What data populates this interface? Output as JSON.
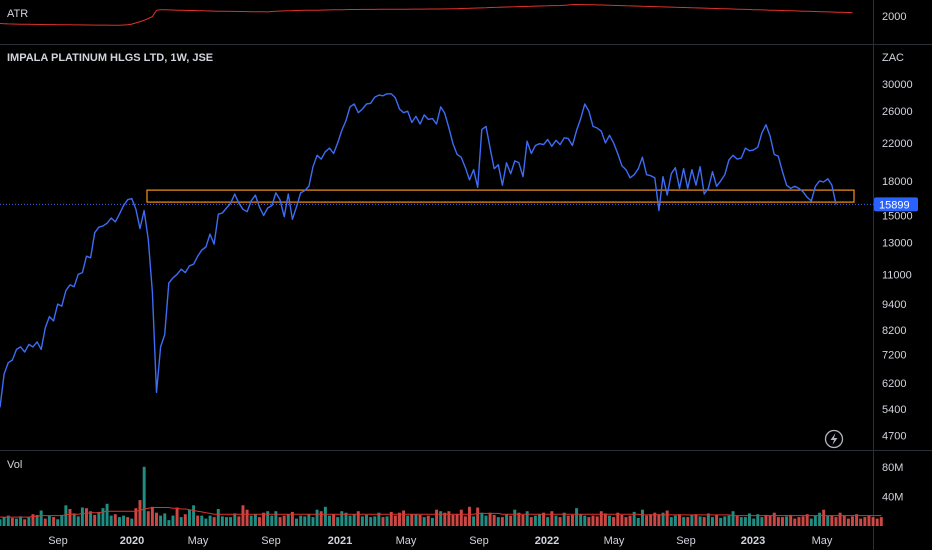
{
  "colors": {
    "background": "#000000",
    "price_line": "#3d6cf5",
    "atr_line": "#e0322b",
    "zone": "#f7931a",
    "vol_up": "#26a69a",
    "vol_down": "#ef5350",
    "vol_ma": "#e0322b",
    "pane_border": "#2a2e39"
  },
  "atr_pane": {
    "label": "ATR",
    "axis_label": "2000"
  },
  "price_pane": {
    "title": "IMPALA PLATINUM HLGS LTD, 1W, JSE",
    "currency": "ZAC",
    "last_price": "15899",
    "y_ticks": [
      "30000",
      "26000",
      "22000",
      "18000",
      "15000",
      "13000",
      "11000",
      "9400",
      "8200",
      "7200",
      "6200",
      "5400",
      "4700"
    ],
    "icon": "lightning-icon"
  },
  "volume_pane": {
    "label": "Vol",
    "y_ticks": [
      "80M",
      "40M"
    ]
  },
  "x_axis": {
    "labels": [
      "Sep",
      "2020",
      "May",
      "Sep",
      "2021",
      "May",
      "Sep",
      "2022",
      "May",
      "Sep",
      "2023",
      "May"
    ]
  },
  "chart_data": [
    {
      "type": "line",
      "title": "IMPALA PLATINUM HLGS LTD, 1W, JSE",
      "ylabel": "ZAC",
      "scale": "log",
      "ylim": [
        4400,
        33000
      ],
      "series": [
        {
          "name": "Close",
          "values": [
            5450,
            6500,
            6900,
            7000,
            7400,
            7500,
            7300,
            7600,
            7500,
            7700,
            7400,
            8300,
            8800,
            8600,
            9400,
            9300,
            10100,
            10400,
            10300,
            11000,
            11100,
            12100,
            12000,
            13700,
            14100,
            14200,
            14400,
            14800,
            14500,
            15100,
            15800,
            16300,
            16400,
            15500,
            14000,
            15400,
            13200,
            10000,
            5900,
            7500,
            8000,
            10500,
            10800,
            11000,
            11300,
            11100,
            11500,
            11600,
            12100,
            12500,
            12700,
            13600,
            12900,
            15100,
            15200,
            15600,
            16000,
            16800,
            16000,
            15500,
            15300,
            16200,
            16700,
            15700,
            15000,
            15600,
            15800,
            16900,
            16300,
            14900,
            16800,
            14700,
            15700,
            16900,
            17100,
            17500,
            19400,
            20600,
            20200,
            21000,
            21400,
            20800,
            22000,
            23500,
            24700,
            26600,
            27000,
            25800,
            26300,
            27000,
            27100,
            28000,
            28300,
            28200,
            28500,
            28500,
            27900,
            26300,
            25800,
            26000,
            24500,
            25300,
            24300,
            25500,
            24900,
            25000,
            24300,
            26600,
            25700,
            23800,
            21900,
            20700,
            20400,
            19300,
            18100,
            19100,
            17400,
            23600,
            24000,
            21400,
            19200,
            19600,
            17600,
            19800,
            18700,
            20000,
            19800,
            18400,
            22200,
            20800,
            21700,
            21900,
            21800,
            22400,
            21600,
            22300,
            21800,
            22600,
            22500,
            21700,
            23500,
            25000,
            27000,
            26000,
            24000,
            23800,
            23400,
            22000,
            22900,
            22000,
            20800,
            19500,
            19100,
            18300,
            18600,
            19200,
            20400,
            18600,
            18500,
            18300,
            15400,
            18400,
            16700,
            18700,
            19300,
            17300,
            19200,
            17300,
            19100,
            17600,
            19400,
            16800,
            17300,
            18900,
            17500,
            18000,
            18600,
            20100,
            20600,
            20200,
            20300,
            21400,
            21100,
            21200,
            21500,
            23200,
            24200,
            22800,
            20700,
            20500,
            18900,
            17600,
            17300,
            17500,
            17300,
            17000,
            16500,
            16200,
            17500,
            18000,
            17900,
            18200,
            17600,
            15899
          ]
        }
      ],
      "annotations": [
        {
          "type": "horizontal-zone",
          "y_range": [
            16100,
            17150
          ]
        },
        {
          "type": "price-line",
          "value": 15899
        }
      ]
    },
    {
      "type": "line",
      "title": "ATR",
      "series": [
        {
          "name": "ATR",
          "values": [
            1250,
            1230,
            1220,
            1210,
            1200,
            1195,
            1190,
            1185,
            1180,
            1175,
            1170,
            1165,
            1160,
            1158,
            1155,
            1150,
            1148,
            1145,
            1140,
            1138,
            1135,
            1130,
            1128,
            1125,
            1122,
            1120,
            1118,
            1115,
            1112,
            1110,
            1130,
            1150,
            1200,
            1300,
            1400,
            1500,
            1650,
            1800,
            2300,
            2350,
            2340,
            2330,
            2320,
            2310,
            2300,
            2290,
            2285,
            2280,
            2270,
            2260,
            2250,
            2240,
            2235,
            2230,
            2225,
            2220,
            2215,
            2210,
            2205,
            2200,
            2195,
            2190,
            2185,
            2180,
            2178,
            2175,
            2200,
            2220,
            2240,
            2250,
            2260,
            2270,
            2280,
            2290,
            2295,
            2300,
            2305,
            2310,
            2315,
            2320,
            2330,
            2340,
            2345,
            2350,
            2355,
            2360,
            2362,
            2365,
            2368,
            2370,
            2372,
            2374,
            2375,
            2376,
            2378,
            2380,
            2382,
            2385,
            2388,
            2390,
            2392,
            2394,
            2396,
            2398,
            2400,
            2402,
            2404,
            2406,
            2408,
            2410,
            2420,
            2430,
            2440,
            2450,
            2460,
            2470,
            2480,
            2490,
            2500,
            2520,
            2530,
            2540,
            2550,
            2560,
            2570,
            2580,
            2590,
            2600,
            2610,
            2620,
            2630,
            2640,
            2650,
            2660,
            2670,
            2675,
            2680,
            2700,
            2720,
            2750,
            2760,
            2755,
            2750,
            2745,
            2740,
            2730,
            2720,
            2710,
            2700,
            2690,
            2680,
            2670,
            2660,
            2650,
            2640,
            2630,
            2620,
            2610,
            2600,
            2590,
            2580,
            2570,
            2560,
            2550,
            2540,
            2530,
            2520,
            2510,
            2500,
            2490,
            2480,
            2470,
            2460,
            2450,
            2440,
            2430,
            2420,
            2410,
            2400,
            2390,
            2380,
            2370,
            2360,
            2350,
            2340,
            2330,
            2320,
            2310,
            2300,
            2290,
            2280,
            2270,
            2260,
            2250,
            2240,
            2230,
            2220,
            2210,
            2200,
            2190,
            2180,
            2170,
            2160,
            2150,
            2140,
            2130,
            2120,
            2110
          ]
        }
      ]
    },
    {
      "type": "bar",
      "title": "Vol",
      "ylim": [
        0,
        100
      ],
      "series": [
        {
          "name": "Volume (M)",
          "values": [
            9,
            12,
            14,
            11,
            10,
            13,
            9,
            12,
            16,
            15,
            21,
            10,
            14,
            12,
            9,
            15,
            28,
            23,
            17,
            13,
            25,
            24,
            20,
            15,
            19,
            24,
            30,
            14,
            16,
            12,
            14,
            12,
            10,
            24,
            35,
            80,
            20,
            26,
            18,
            14,
            17,
            8,
            14,
            25,
            12,
            16,
            22,
            28,
            14,
            14,
            10,
            14,
            12,
            23,
            13,
            12,
            12,
            17,
            13,
            28,
            22,
            14,
            16,
            12,
            18,
            20,
            14,
            20,
            12,
            14,
            16,
            19,
            10,
            14,
            13,
            16,
            12,
            22,
            20,
            26,
            14,
            16,
            12,
            20,
            18,
            14,
            16,
            20,
            13,
            15,
            12,
            13,
            18,
            12,
            13,
            19,
            14,
            18,
            21,
            14,
            16,
            16,
            15,
            12,
            14,
            11,
            22,
            20,
            18,
            20,
            15,
            16,
            22,
            13,
            26,
            13,
            25,
            18,
            14,
            18,
            15,
            12,
            12,
            16,
            14,
            22,
            18,
            15,
            20,
            12,
            14,
            16,
            18,
            12,
            20,
            14,
            12,
            18,
            14,
            15,
            24,
            16,
            14,
            12,
            14,
            13,
            20,
            17,
            14,
            12,
            18,
            15,
            12,
            14,
            19,
            11,
            22,
            14,
            16,
            18,
            16,
            18,
            21,
            12,
            14,
            16,
            12,
            12,
            15,
            16,
            13,
            12,
            17,
            12,
            15,
            11,
            13,
            14,
            20,
            14,
            12,
            12,
            17,
            10,
            16,
            12,
            15,
            14,
            18,
            12,
            12,
            13,
            15,
            10,
            12,
            13,
            16,
            10,
            14,
            18,
            22,
            14,
            14,
            12,
            18,
            14,
            10,
            13,
            16,
            10,
            12,
            14,
            12,
            10,
            12
          ]
        }
      ],
      "up_flags": [
        1,
        1,
        1,
        0,
        1,
        1,
        0,
        1,
        0,
        1,
        1,
        0,
        1,
        0,
        1,
        1,
        1,
        0,
        1,
        1,
        1,
        0,
        1,
        0,
        1,
        1,
        1,
        1,
        0,
        1,
        1,
        0,
        1,
        0,
        0,
        1,
        0,
        0,
        0,
        1,
        1,
        1,
        1,
        0,
        1,
        0,
        1,
        1,
        0,
        1,
        1,
        1,
        0,
        1,
        1,
        1,
        1,
        1,
        0,
        0,
        0,
        1,
        1,
        0,
        0,
        1,
        1,
        1,
        0,
        0,
        1,
        0,
        1,
        1,
        1,
        1,
        1,
        1,
        0,
        1,
        1,
        0,
        1,
        1,
        1,
        1,
        1,
        0,
        1,
        1,
        1,
        1,
        1,
        0,
        1,
        0,
        0,
        0,
        0,
        1,
        0,
        1,
        0,
        1,
        0,
        1,
        0,
        1,
        0,
        0,
        0,
        0,
        0,
        0,
        0,
        1,
        0,
        1,
        1,
        0,
        0,
        1,
        0,
        1,
        0,
        1,
        0,
        0,
        1,
        0,
        1,
        1,
        0,
        1,
        0,
        1,
        0,
        1,
        0,
        0,
        1,
        1,
        1,
        0,
        0,
        0,
        0,
        0,
        1,
        0,
        0,
        0,
        0,
        0,
        1,
        1,
        1,
        0,
        0,
        0,
        0,
        1,
        0,
        1,
        1,
        0,
        1,
        0,
        1,
        0,
        1,
        0,
        1,
        1,
        0,
        1,
        1,
        1,
        1,
        0,
        1,
        1,
        1,
        1,
        1,
        1,
        0,
        0,
        0,
        0,
        0,
        1,
        0,
        0,
        0,
        0,
        0,
        1,
        1,
        1,
        0,
        1,
        0,
        0,
        0
      ],
      "ma_values": [
        12,
        12,
        12,
        12,
        12,
        12,
        12,
        12,
        13,
        13,
        14,
        14,
        14,
        14,
        14,
        14,
        15,
        16,
        16,
        16,
        17,
        17,
        18,
        18,
        18,
        19,
        20,
        20,
        20,
        20,
        20,
        20,
        20,
        20,
        21,
        23,
        24,
        25,
        25,
        25,
        25,
        25,
        24,
        24,
        23,
        23,
        22,
        21,
        20,
        19,
        18,
        17,
        16,
        16,
        16,
        16,
        16,
        16,
        16,
        16,
        16,
        16,
        16,
        16,
        16,
        16,
        16,
        16,
        16,
        16,
        16,
        16,
        16,
        16,
        16,
        16,
        16,
        16,
        16,
        16,
        16,
        16,
        16,
        16,
        16,
        16,
        16,
        16,
        16,
        16,
        16,
        16,
        16,
        16,
        16,
        16,
        16,
        16,
        16,
        16,
        16,
        16,
        16,
        16,
        16,
        16,
        16,
        16,
        16,
        16,
        16,
        16,
        16,
        16,
        16,
        16,
        17,
        17,
        17,
        17,
        17,
        17,
        16,
        16,
        16,
        16,
        16,
        16,
        16,
        16,
        16,
        16,
        16,
        16,
        16,
        16,
        16,
        16,
        16,
        16,
        16,
        16,
        16,
        16,
        16,
        16,
        16,
        16,
        16,
        16,
        16,
        16,
        16,
        16,
        16,
        16,
        15,
        15,
        15,
        15,
        15,
        15,
        15,
        15,
        15,
        15,
        15,
        15,
        15,
        15,
        15,
        15,
        15,
        15,
        15,
        15,
        15,
        15,
        14,
        14,
        14,
        14,
        14,
        14,
        14,
        14,
        14,
        14,
        14,
        14,
        14,
        14,
        14,
        14,
        14,
        14,
        14,
        14,
        14,
        14,
        14,
        14,
        14,
        14,
        14,
        14,
        14,
        14,
        14,
        14,
        14,
        14,
        14,
        14,
        14
      ]
    }
  ]
}
